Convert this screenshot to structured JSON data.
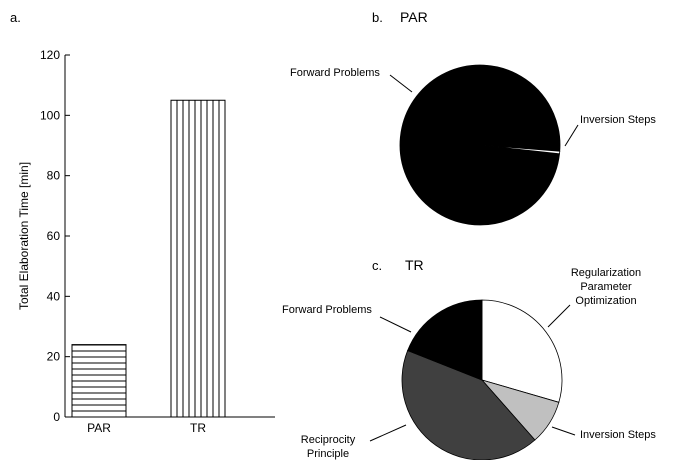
{
  "chart_data": [
    {
      "panel": "a.",
      "type": "bar",
      "title": "",
      "xlabel": "",
      "ylabel": "Total Elaboration Time [min]",
      "categories": [
        "PAR",
        "TR"
      ],
      "values": [
        24,
        105
      ],
      "ylim": [
        0,
        120
      ],
      "yticks": [
        0,
        20,
        40,
        60,
        80,
        100,
        120
      ],
      "hatch": [
        "horizontal",
        "vertical"
      ],
      "grid": false,
      "legend": "none"
    },
    {
      "panel": "b.",
      "type": "pie",
      "title": "PAR",
      "slices": [
        {
          "label": "Forward Problems",
          "value": 99.5,
          "color": "#000000"
        },
        {
          "label": "Inversion Steps",
          "value": 0.5,
          "color": "#ffffff"
        }
      ]
    },
    {
      "panel": "c.",
      "type": "pie",
      "title": "TR",
      "slices": [
        {
          "label": "Regularization Parameter Optimization",
          "lines": [
            "Regularization",
            "Parameter",
            "Optimization"
          ],
          "value": 29.5,
          "color": "#ffffff"
        },
        {
          "label": "Inversion Steps",
          "value": 9,
          "color": "#c0c0c0"
        },
        {
          "label": "Reciprocity Principle",
          "lines": [
            "Reciprocity",
            "Principle"
          ],
          "value": 42.5,
          "color": "#404040"
        },
        {
          "label": "Forward Problems",
          "value": 19,
          "color": "#000000"
        }
      ]
    }
  ]
}
